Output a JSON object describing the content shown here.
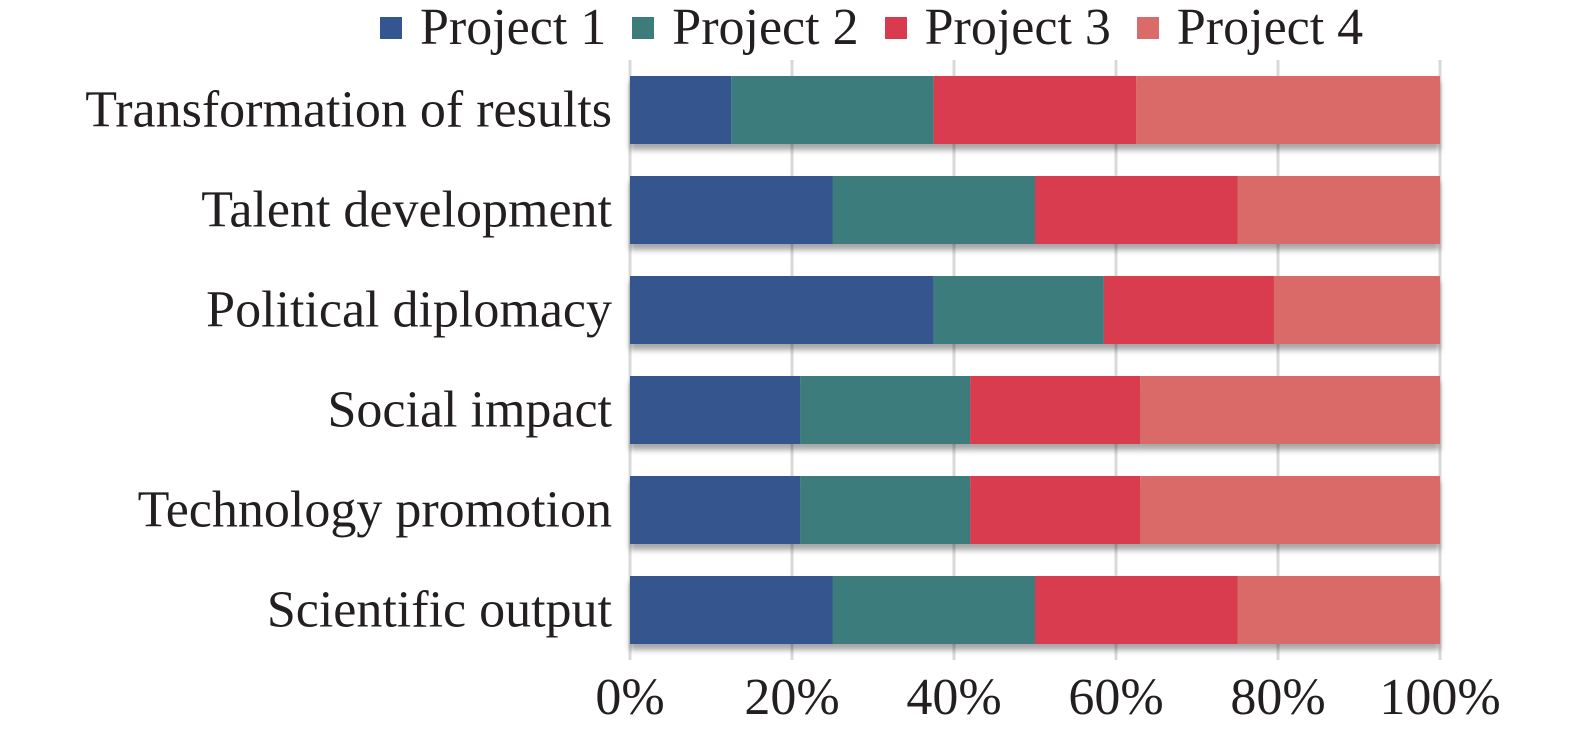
{
  "chart_data": {
    "type": "bar",
    "orientation": "horizontal",
    "stacked": "percent",
    "categories": [
      "Transformation of results",
      "Talent development",
      "Political diplomacy",
      "Social impact",
      "Technology promotion",
      "Scientific output"
    ],
    "series": [
      {
        "name": "Project 1",
        "values": [
          12.5,
          25,
          37.5,
          21,
          21,
          25
        ]
      },
      {
        "name": "Project 2",
        "values": [
          25,
          25,
          21,
          21,
          21,
          25
        ]
      },
      {
        "name": "Project 3",
        "values": [
          25,
          25,
          21,
          21,
          21,
          25
        ]
      },
      {
        "name": "Project 4",
        "values": [
          37.5,
          25,
          20.5,
          37,
          37,
          25
        ]
      }
    ],
    "colors": [
      "#34558f",
      "#3c7c7b",
      "#d93a50",
      "#da6b68"
    ],
    "xticks": [
      "0%",
      "20%",
      "40%",
      "60%",
      "80%",
      "100%"
    ],
    "xlim": [
      0,
      100
    ],
    "legend_position": "top",
    "grid": "vertical"
  }
}
